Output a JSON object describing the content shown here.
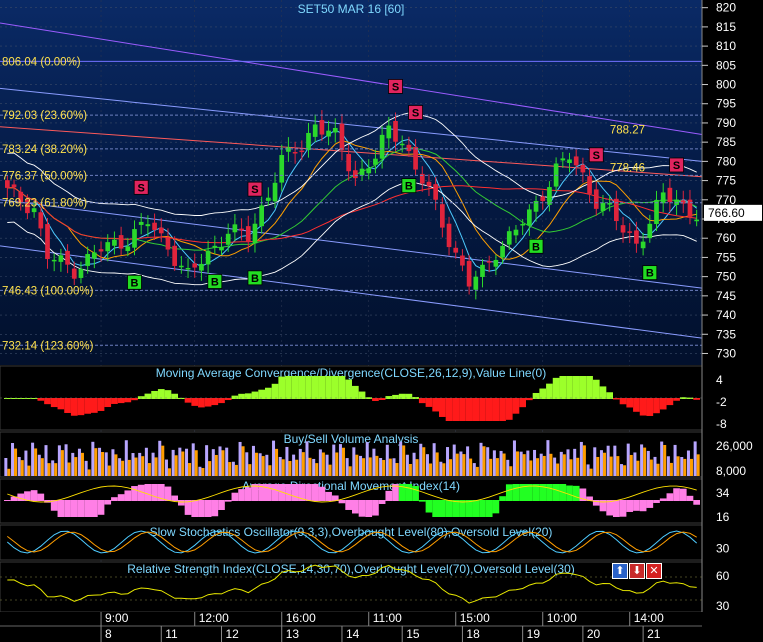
{
  "title": "SET50 MAR 16  [60]",
  "colors": {
    "background": "#000000",
    "grid": "#3a4a66",
    "up_candle": "#2bd82b",
    "down_candle": "#e0243c",
    "buy_marker": "#22dd22",
    "sell_marker": "#e0245e",
    "fib_text": "#ffe14d",
    "title_text": "#7fd8ff"
  },
  "price_axis": {
    "ticks": [
      "820",
      "815",
      "810",
      "805",
      "800",
      "795",
      "790",
      "785",
      "780",
      "775",
      "770",
      "765",
      "760",
      "755",
      "750",
      "745",
      "740",
      "735",
      "730"
    ],
    "current_price": "766.60",
    "range": [
      727,
      822
    ]
  },
  "fib_levels": [
    {
      "label": "806.04 (0.00%)",
      "value": 806.04
    },
    {
      "label": "792.03 (23.60%)",
      "value": 792.03
    },
    {
      "label": "783.24 (38.20%)",
      "value": 783.24
    },
    {
      "label": "776.37 (50.00%)",
      "value": 776.37
    },
    {
      "label": "769.23 (61.80%)",
      "value": 769.23
    },
    {
      "label": "746.43 (100.00%)",
      "value": 746.43
    },
    {
      "label": "732.14 (123.60%)",
      "value": 732.14
    }
  ],
  "annotations": [
    {
      "label": "788.27",
      "value": 788.27
    },
    {
      "label": "778.46",
      "value": 778.46
    }
  ],
  "signals": [
    {
      "type": "S",
      "label": "S",
      "bar": 20
    },
    {
      "type": "S",
      "label": "S",
      "bar": 37
    },
    {
      "type": "S",
      "label": "S",
      "bar": 58
    },
    {
      "type": "S",
      "label": "S",
      "bar": 61
    },
    {
      "type": "S",
      "label": "S",
      "bar": 88
    },
    {
      "type": "S",
      "label": "S",
      "bar": 100
    },
    {
      "type": "B",
      "label": "B",
      "bar": 19
    },
    {
      "type": "B",
      "label": "B",
      "bar": 31
    },
    {
      "type": "B",
      "label": "B",
      "bar": 37
    },
    {
      "type": "B",
      "label": "B",
      "bar": 60
    },
    {
      "type": "B",
      "label": "B",
      "bar": 79
    },
    {
      "type": "B",
      "label": "B",
      "bar": 96
    }
  ],
  "panels": {
    "macd": {
      "label": "Moving Average Convergence/Divergence(CLOSE,26,12,9),Value Line(0)",
      "ticks": [
        "4",
        "-2",
        "-8"
      ]
    },
    "volume": {
      "label": "Buy/Sell Volume Analysis",
      "ticks": [
        "26,000",
        "8,000"
      ]
    },
    "adx": {
      "label": "Average Directional Movement Index(14)",
      "ticks": [
        "34",
        "16"
      ]
    },
    "stoch": {
      "label": "Slow Stochastics Oscillator(9,3,3),Overbought Level(80),Oversold Level(20)",
      "ticks": [
        "30"
      ]
    },
    "rsi": {
      "label": "Relative Strength Index(CLOSE,14,30,70),Overbought Level(70),Oversold Level(30)",
      "ticks": [
        "60",
        "30"
      ]
    }
  },
  "window_controls": {
    "up": "⬆",
    "down": "⬇",
    "close": "✕"
  },
  "time_axis": {
    "times": [
      {
        "label": "9:00",
        "bar": 14
      },
      {
        "label": "12:00",
        "bar": 28
      },
      {
        "label": "16:00",
        "bar": 41
      },
      {
        "label": "11:00",
        "bar": 54
      },
      {
        "label": "15:00",
        "bar": 67
      },
      {
        "label": "10:00",
        "bar": 80
      },
      {
        "label": "14:00",
        "bar": 93
      }
    ],
    "dates": [
      {
        "label": "8",
        "bar": 14
      },
      {
        "label": "11",
        "bar": 23
      },
      {
        "label": "12",
        "bar": 32
      },
      {
        "label": "13",
        "bar": 41
      },
      {
        "label": "14",
        "bar": 50
      },
      {
        "label": "15",
        "bar": 59
      },
      {
        "label": "18",
        "bar": 68
      },
      {
        "label": "19",
        "bar": 77
      },
      {
        "label": "20",
        "bar": 86
      },
      {
        "label": "21",
        "bar": 95
      }
    ]
  },
  "chart_data": {
    "type": "line",
    "title": "SET50 MAR 16  [60]",
    "bars": 104,
    "close_series_keypoints": [
      [
        0,
        772
      ],
      [
        4,
        768
      ],
      [
        6,
        755
      ],
      [
        10,
        752
      ],
      [
        14,
        757
      ],
      [
        18,
        760
      ],
      [
        21,
        764
      ],
      [
        24,
        758
      ],
      [
        27,
        750
      ],
      [
        30,
        756
      ],
      [
        33,
        762
      ],
      [
        36,
        760
      ],
      [
        38,
        768
      ],
      [
        41,
        780
      ],
      [
        44,
        784
      ],
      [
        46,
        790
      ],
      [
        49,
        786
      ],
      [
        52,
        776
      ],
      [
        55,
        781
      ],
      [
        57,
        788
      ],
      [
        59,
        786
      ],
      [
        61,
        778
      ],
      [
        63,
        772
      ],
      [
        65,
        764
      ],
      [
        67,
        756
      ],
      [
        69,
        748
      ],
      [
        71,
        751
      ],
      [
        73,
        757
      ],
      [
        76,
        762
      ],
      [
        78,
        766
      ],
      [
        80,
        772
      ],
      [
        82,
        778
      ],
      [
        84,
        781
      ],
      [
        86,
        776
      ],
      [
        88,
        770
      ],
      [
        90,
        767
      ],
      [
        92,
        762
      ],
      [
        94,
        759
      ],
      [
        96,
        764
      ],
      [
        98,
        771
      ],
      [
        100,
        770
      ],
      [
        103,
        766
      ]
    ],
    "ylim": [
      727,
      822
    ]
  }
}
